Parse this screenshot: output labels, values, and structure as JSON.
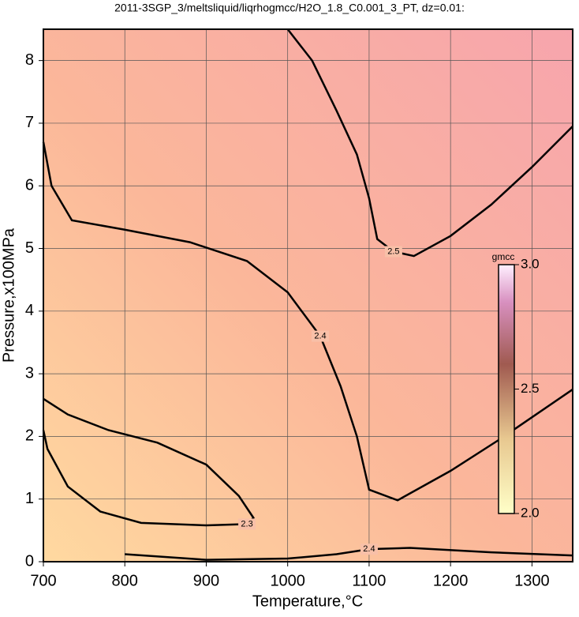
{
  "chart_data": {
    "type": "contour",
    "title": "2011-3SGP_3/meltsliquid/liqrhogmcc/H2O_1.8_C0.001_3_PT, dz=0.01:",
    "x_label": "Temperature,°C",
    "y_label": "Pressure,x100MPa",
    "xlim": [
      700,
      1350
    ],
    "ylim": [
      0,
      8.5
    ],
    "xticks": [
      700,
      800,
      900,
      1000,
      1100,
      1200,
      1300
    ],
    "yticks": [
      0,
      1,
      2,
      3,
      4,
      5,
      6,
      7,
      8
    ],
    "grid": true,
    "colorbar": {
      "label": "gmcc",
      "clim": [
        2,
        3
      ],
      "ticks": [
        {
          "value": 2,
          "label": "2.0"
        },
        {
          "value": 2.5,
          "label": "2.5"
        },
        {
          "value": 3,
          "label": "3.0"
        }
      ]
    },
    "contours": [
      {
        "level": 2.5,
        "x": [
          1000,
          1030,
          1060,
          1085,
          1100,
          1110,
          1130,
          1155,
          1200,
          1250,
          1300,
          1350
        ],
        "y": [
          8.5,
          8.0,
          7.2,
          6.5,
          5.8,
          5.15,
          4.95,
          4.88,
          5.2,
          5.7,
          6.3,
          6.95
        ]
      },
      {
        "level": 2.4,
        "x": [
          700,
          710,
          735,
          800,
          880,
          950,
          1000,
          1040,
          1065,
          1085,
          1100,
          1135,
          1200,
          1260,
          1350
        ],
        "y": [
          6.7,
          6.0,
          5.45,
          5.3,
          5.1,
          4.8,
          4.3,
          3.6,
          2.8,
          2.0,
          1.15,
          0.98,
          1.45,
          1.95,
          2.75
        ]
      },
      {
        "level": 2.3,
        "x": [
          700,
          730,
          780,
          840,
          900,
          940,
          958,
          950,
          900,
          820,
          770,
          730,
          705,
          700
        ],
        "y": [
          2.6,
          2.35,
          2.1,
          1.9,
          1.55,
          1.05,
          0.7,
          0.6,
          0.58,
          0.62,
          0.8,
          1.2,
          1.8,
          2.1
        ]
      },
      {
        "level": 2.4,
        "x": [
          800,
          900,
          1000,
          1060,
          1100,
          1150,
          1250,
          1350
        ],
        "y": [
          0.12,
          0.03,
          0.05,
          0.12,
          0.2,
          0.22,
          0.15,
          0.1
        ]
      }
    ]
  }
}
